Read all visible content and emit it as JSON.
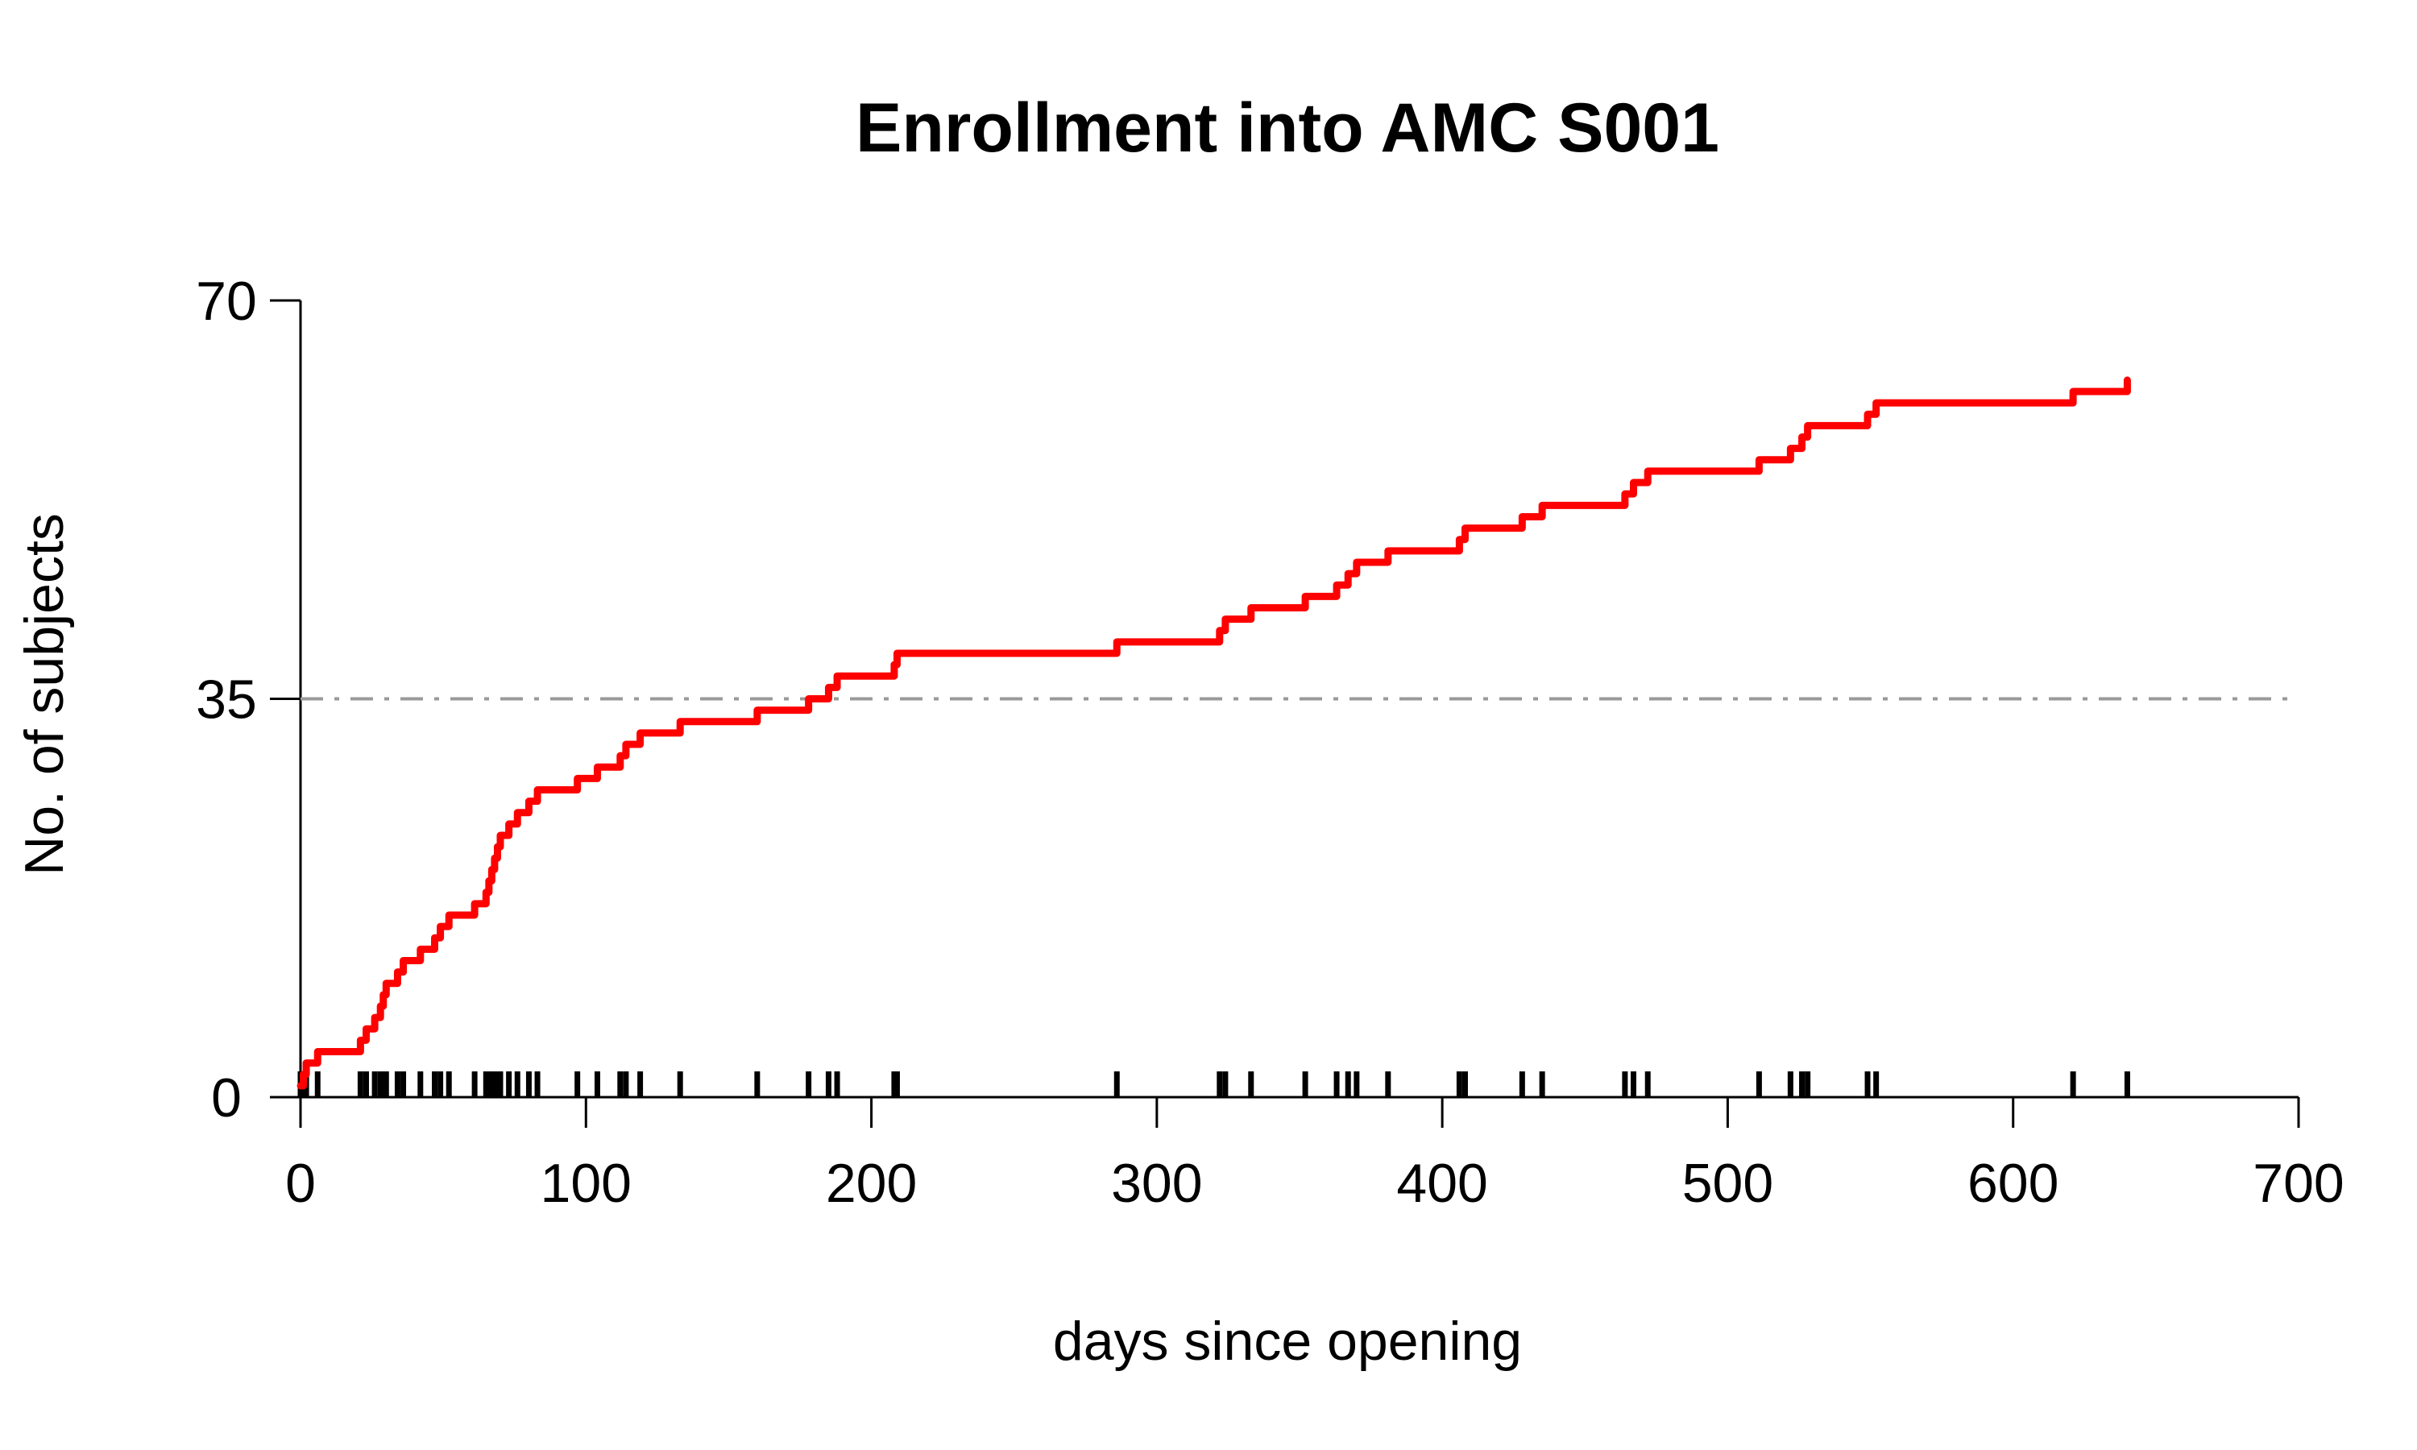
{
  "chart_data": {
    "type": "line",
    "title": "Enrollment into AMC S001",
    "xlabel": "days since opening",
    "ylabel": "No. of subjects",
    "xlim": [
      0,
      700
    ],
    "ylim": [
      0,
      70
    ],
    "x_ticks": [
      0,
      100,
      200,
      300,
      400,
      500,
      600,
      700
    ],
    "y_ticks": [
      0,
      35,
      70
    ],
    "reference_line": {
      "y": 35,
      "style": "dash-dot",
      "color": "#999999"
    },
    "grid": false,
    "legend": "none",
    "series": [
      {
        "color": "#ff0000",
        "step": true,
        "x": [
          0,
          1,
          2,
          6,
          21,
          23,
          26,
          28,
          29,
          30,
          34,
          36,
          42,
          47,
          49,
          52,
          61,
          65,
          66,
          67,
          68,
          69,
          70,
          73,
          76,
          80,
          83,
          97,
          104,
          112,
          114,
          119,
          133,
          160,
          178,
          185,
          188,
          208,
          209,
          286,
          322,
          324,
          333,
          352,
          363,
          367,
          370,
          381,
          406,
          408,
          428,
          435,
          464,
          467,
          472,
          511,
          522,
          526,
          528,
          549,
          552,
          621,
          640
        ],
        "y": [
          1,
          2,
          3,
          4,
          5,
          6,
          7,
          8,
          9,
          10,
          11,
          12,
          13,
          14,
          15,
          16,
          17,
          18,
          19,
          20,
          21,
          22,
          23,
          24,
          25,
          26,
          27,
          28,
          29,
          30,
          31,
          32,
          33,
          34,
          35,
          36,
          37,
          38,
          39,
          40,
          41,
          42,
          43,
          44,
          45,
          46,
          47,
          48,
          49,
          50,
          51,
          52,
          53,
          54,
          55,
          56,
          57,
          58,
          59,
          60,
          61,
          62,
          63
        ]
      }
    ],
    "rug_color": "#000000"
  }
}
